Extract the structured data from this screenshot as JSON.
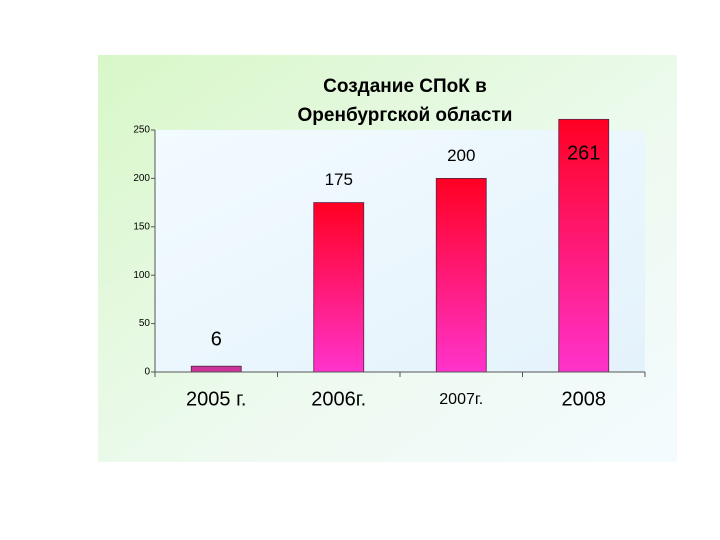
{
  "chart_data": {
    "type": "bar",
    "title": [
      "Создание  СПоК  в",
      "Оренбургской области"
    ],
    "categories": [
      "2005 г.",
      "2006г.",
      "2007г.",
      "2008"
    ],
    "values": [
      6,
      175,
      200,
      261
    ],
    "ylim": [
      0,
      250
    ],
    "yticks": [
      0,
      50,
      100,
      150,
      200,
      250
    ]
  }
}
